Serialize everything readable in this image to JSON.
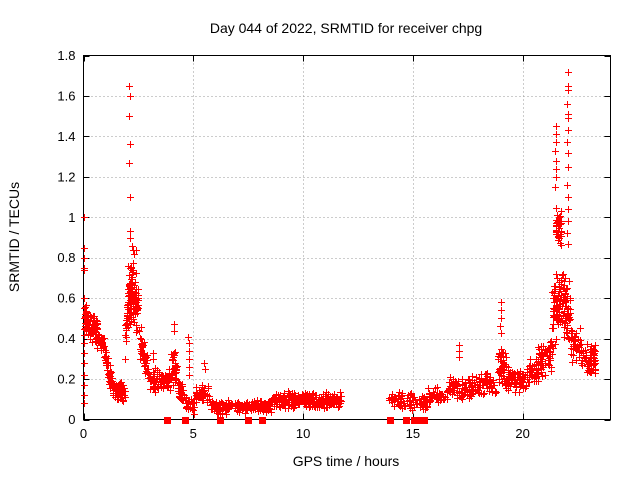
{
  "window": {
    "background": "#ffffff"
  },
  "chart_data": {
    "type": "scatter",
    "title": "Day 044 of 2022, SRMTID for receiver chpg",
    "xlabel": "GPS time / hours",
    "ylabel": "SRMTID / TECUs",
    "xlim": [
      0,
      24
    ],
    "ylim": [
      0,
      1.8
    ],
    "xticks": [
      0,
      5,
      10,
      15,
      20
    ],
    "xtick_labels": [
      "0",
      "5",
      "10",
      "15",
      "20"
    ],
    "yticks": [
      0,
      0.2,
      0.4,
      0.6,
      0.8,
      1,
      1.2,
      1.4,
      1.6,
      1.8
    ],
    "ytick_labels": [
      "0",
      "0.2",
      "0.4",
      "0.6",
      "0.8",
      "1",
      "1.2",
      "1.4",
      "1.6",
      "1.8"
    ],
    "grid": {
      "show": true,
      "style": "dotted"
    },
    "legend": "none",
    "style": {
      "marker_color": "#ff0000",
      "grid_color": "#999999",
      "axis_color": "#000000",
      "background": "#ffffff"
    },
    "band_fields": [
      "x_start",
      "x_end",
      "y_center_start",
      "y_center_end",
      "y_spread",
      "n_points"
    ],
    "series": [
      {
        "name": "SRMTID",
        "marker": "plus",
        "color": "#ff0000",
        "points": [
          [
            0.02,
            1.0
          ],
          [
            0.02,
            0.85
          ],
          [
            0.03,
            0.8
          ],
          [
            0.02,
            0.75
          ],
          [
            0.03,
            0.74
          ],
          [
            0.02,
            0.6
          ],
          [
            0.03,
            0.55
          ],
          [
            0.02,
            0.5
          ],
          [
            0.03,
            0.45
          ],
          [
            0.02,
            0.42
          ],
          [
            0.03,
            0.38
          ],
          [
            0.02,
            0.33
          ],
          [
            0.03,
            0.28
          ],
          [
            0.02,
            0.22
          ],
          [
            0.03,
            0.17
          ],
          [
            0.02,
            0.12
          ],
          [
            0.03,
            0.08
          ],
          [
            2.08,
            1.65
          ],
          [
            2.1,
            1.6
          ],
          [
            2.09,
            1.5
          ],
          [
            2.1,
            1.36
          ],
          [
            2.08,
            1.27
          ],
          [
            2.12,
            1.1
          ],
          [
            2.1,
            0.93
          ],
          [
            2.14,
            0.9
          ],
          [
            2.2,
            0.86
          ],
          [
            2.26,
            0.84
          ],
          [
            2.32,
            0.82
          ],
          [
            2.4,
            0.84
          ],
          [
            3.15,
            0.33
          ],
          [
            3.17,
            0.3
          ],
          [
            4.1,
            0.47
          ],
          [
            4.12,
            0.44
          ],
          [
            4.78,
            0.41
          ],
          [
            4.8,
            0.38
          ],
          [
            4.79,
            0.34
          ],
          [
            4.81,
            0.3
          ],
          [
            4.8,
            0.26
          ],
          [
            4.82,
            0.22
          ],
          [
            5.5,
            0.28
          ],
          [
            5.52,
            0.25
          ],
          [
            17.1,
            0.37
          ],
          [
            17.1,
            0.34
          ],
          [
            17.12,
            0.31
          ],
          [
            19.0,
            0.58
          ],
          [
            19.0,
            0.54
          ],
          [
            19.02,
            0.5
          ],
          [
            18.98,
            0.46
          ],
          [
            19.0,
            0.43
          ],
          [
            21.5,
            1.45
          ],
          [
            21.5,
            1.41
          ],
          [
            21.52,
            1.37
          ],
          [
            21.48,
            1.33
          ],
          [
            21.5,
            1.28
          ],
          [
            21.53,
            1.24
          ],
          [
            21.5,
            1.2
          ],
          [
            21.47,
            1.15
          ],
          [
            22.05,
            1.72
          ],
          [
            22.05,
            1.65
          ],
          [
            22.07,
            1.63
          ],
          [
            22.04,
            1.56
          ],
          [
            22.06,
            1.51
          ],
          [
            22.05,
            1.49
          ],
          [
            22.08,
            1.43
          ],
          [
            22.03,
            1.37
          ],
          [
            22.06,
            1.32
          ],
          [
            22.05,
            1.25
          ],
          [
            22.04,
            1.16
          ],
          [
            22.07,
            1.1
          ],
          [
            22.05,
            1.04
          ],
          [
            22.06,
            0.98
          ],
          [
            22.04,
            0.92
          ],
          [
            22.05,
            0.87
          ]
        ],
        "bands": [
          [
            0.06,
            0.5,
            0.5,
            0.46,
            0.09,
            50
          ],
          [
            0.5,
            0.95,
            0.44,
            0.36,
            0.08,
            45
          ],
          [
            0.95,
            1.3,
            0.32,
            0.18,
            0.07,
            40
          ],
          [
            1.3,
            1.9,
            0.15,
            0.13,
            0.055,
            65
          ],
          [
            1.88,
            2.02,
            0.38,
            0.55,
            0.13,
            22
          ],
          [
            2.02,
            2.28,
            0.62,
            0.62,
            0.17,
            60
          ],
          [
            2.28,
            2.5,
            0.6,
            0.55,
            0.16,
            40
          ],
          [
            2.5,
            2.95,
            0.42,
            0.25,
            0.09,
            45
          ],
          [
            2.95,
            4.0,
            0.19,
            0.19,
            0.065,
            75
          ],
          [
            4.0,
            4.25,
            0.28,
            0.24,
            0.1,
            30
          ],
          [
            4.25,
            4.6,
            0.15,
            0.13,
            0.06,
            25
          ],
          [
            4.6,
            5.1,
            0.08,
            0.07,
            0.05,
            30
          ],
          [
            5.1,
            5.75,
            0.13,
            0.12,
            0.06,
            40
          ],
          [
            5.75,
            6.55,
            0.07,
            0.05,
            0.035,
            55
          ],
          [
            6.55,
            8.55,
            0.065,
            0.065,
            0.035,
            135
          ],
          [
            8.55,
            10.1,
            0.1,
            0.1,
            0.05,
            120
          ],
          [
            10.1,
            11.75,
            0.095,
            0.095,
            0.045,
            135
          ],
          [
            13.9,
            14.45,
            0.1,
            0.1,
            0.045,
            28
          ],
          [
            14.45,
            15.65,
            0.09,
            0.09,
            0.05,
            50
          ],
          [
            15.65,
            16.6,
            0.12,
            0.12,
            0.05,
            50
          ],
          [
            16.6,
            17.65,
            0.16,
            0.15,
            0.06,
            60
          ],
          [
            17.65,
            18.85,
            0.17,
            0.18,
            0.06,
            75
          ],
          [
            18.85,
            19.25,
            0.27,
            0.25,
            0.1,
            40
          ],
          [
            19.25,
            20.2,
            0.2,
            0.2,
            0.07,
            70
          ],
          [
            20.2,
            20.7,
            0.23,
            0.24,
            0.08,
            40
          ],
          [
            20.7,
            21.35,
            0.3,
            0.32,
            0.1,
            55
          ],
          [
            21.35,
            21.8,
            0.55,
            0.6,
            0.22,
            60
          ],
          [
            21.5,
            21.8,
            0.95,
            0.95,
            0.13,
            40
          ],
          [
            21.8,
            22.2,
            0.6,
            0.5,
            0.2,
            55
          ],
          [
            22.2,
            22.65,
            0.37,
            0.35,
            0.1,
            40
          ],
          [
            22.65,
            23.35,
            0.3,
            0.3,
            0.08,
            55
          ]
        ]
      },
      {
        "name": "zero-flags",
        "marker": "filled-square",
        "color": "#ff0000",
        "points": [
          [
            3.8,
            0
          ],
          [
            4.6,
            0
          ],
          [
            6.2,
            0
          ],
          [
            7.5,
            0
          ],
          [
            8.15,
            0
          ],
          [
            13.98,
            0
          ],
          [
            14.7,
            0
          ],
          [
            15.05,
            0
          ],
          [
            15.2,
            0
          ],
          [
            15.35,
            0
          ],
          [
            15.5,
            0
          ]
        ]
      }
    ]
  }
}
